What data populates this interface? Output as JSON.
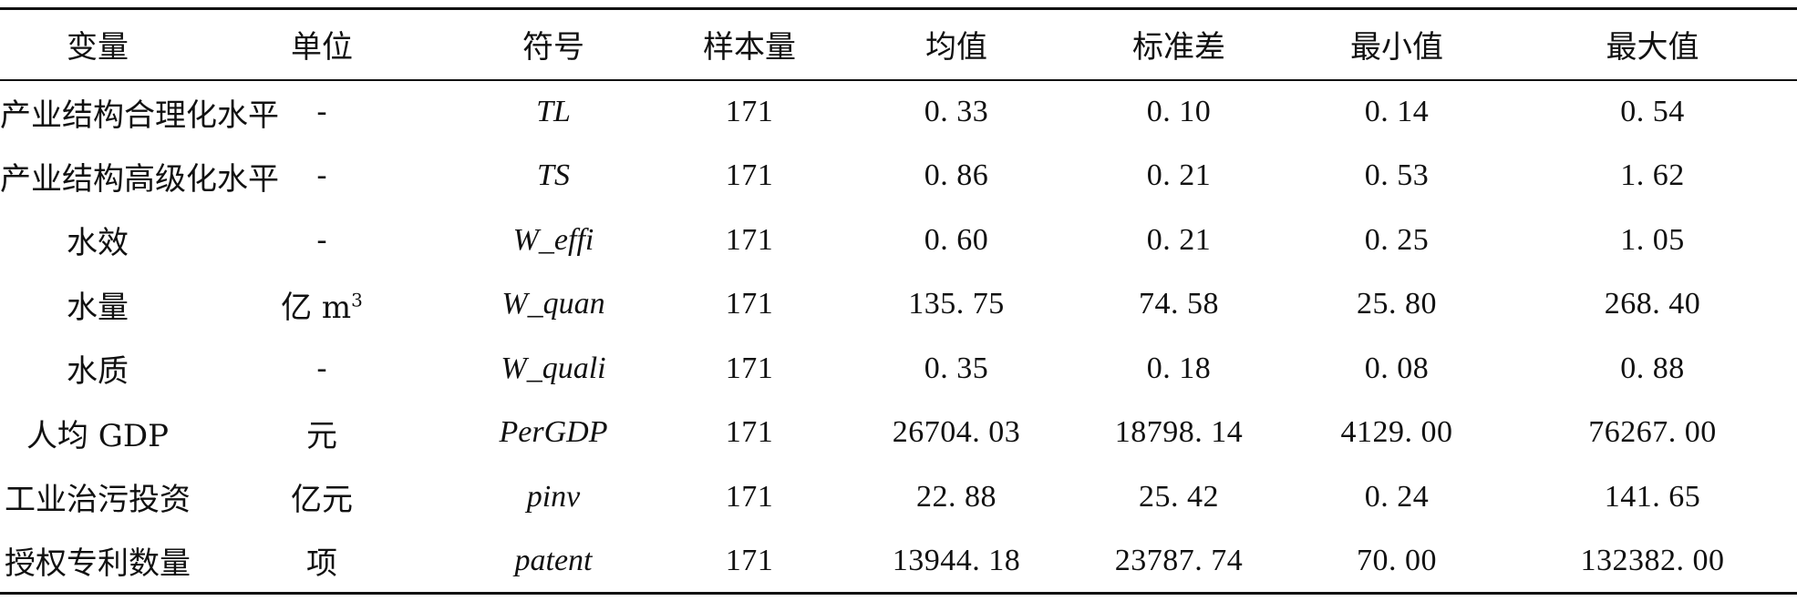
{
  "table": {
    "headers": [
      "变量",
      "单位",
      "符号",
      "样本量",
      "均值",
      "标准差",
      "最小值",
      "最大值"
    ],
    "rows": [
      {
        "variable": "产业结构合理化水平",
        "unit": "-",
        "unit_sup": "",
        "symbol": "TL",
        "n": "171",
        "mean": "0. 33",
        "sd": "0. 10",
        "min": "0. 14",
        "max": "0. 54"
      },
      {
        "variable": "产业结构高级化水平",
        "unit": "-",
        "unit_sup": "",
        "symbol": "TS",
        "n": "171",
        "mean": "0. 86",
        "sd": "0. 21",
        "min": "0. 53",
        "max": "1. 62"
      },
      {
        "variable": "水效",
        "unit": "-",
        "unit_sup": "",
        "symbol": "W_effi",
        "n": "171",
        "mean": "0. 60",
        "sd": "0. 21",
        "min": "0. 25",
        "max": "1. 05"
      },
      {
        "variable": "水量",
        "unit": "亿 m",
        "unit_sup": "3",
        "symbol": "W_quan",
        "n": "171",
        "mean": "135. 75",
        "sd": "74. 58",
        "min": "25. 80",
        "max": "268. 40"
      },
      {
        "variable": "水质",
        "unit": "-",
        "unit_sup": "",
        "symbol": "W_quali",
        "n": "171",
        "mean": "0. 35",
        "sd": "0. 18",
        "min": "0. 08",
        "max": "0. 88"
      },
      {
        "variable": "人均 GDP",
        "unit": "元",
        "unit_sup": "",
        "symbol": "PerGDP",
        "n": "171",
        "mean": "26704. 03",
        "sd": "18798. 14",
        "min": "4129. 00",
        "max": "76267. 00"
      },
      {
        "variable": "工业治污投资",
        "unit": "亿元",
        "unit_sup": "",
        "symbol": "pinv",
        "n": "171",
        "mean": "22. 88",
        "sd": "25. 42",
        "min": "0. 24",
        "max": "141. 65"
      },
      {
        "variable": "授权专利数量",
        "unit": "项",
        "unit_sup": "",
        "symbol": "patent",
        "n": "171",
        "mean": "13944. 18",
        "sd": "23787. 74",
        "min": "70. 00",
        "max": "132382. 00"
      }
    ]
  }
}
